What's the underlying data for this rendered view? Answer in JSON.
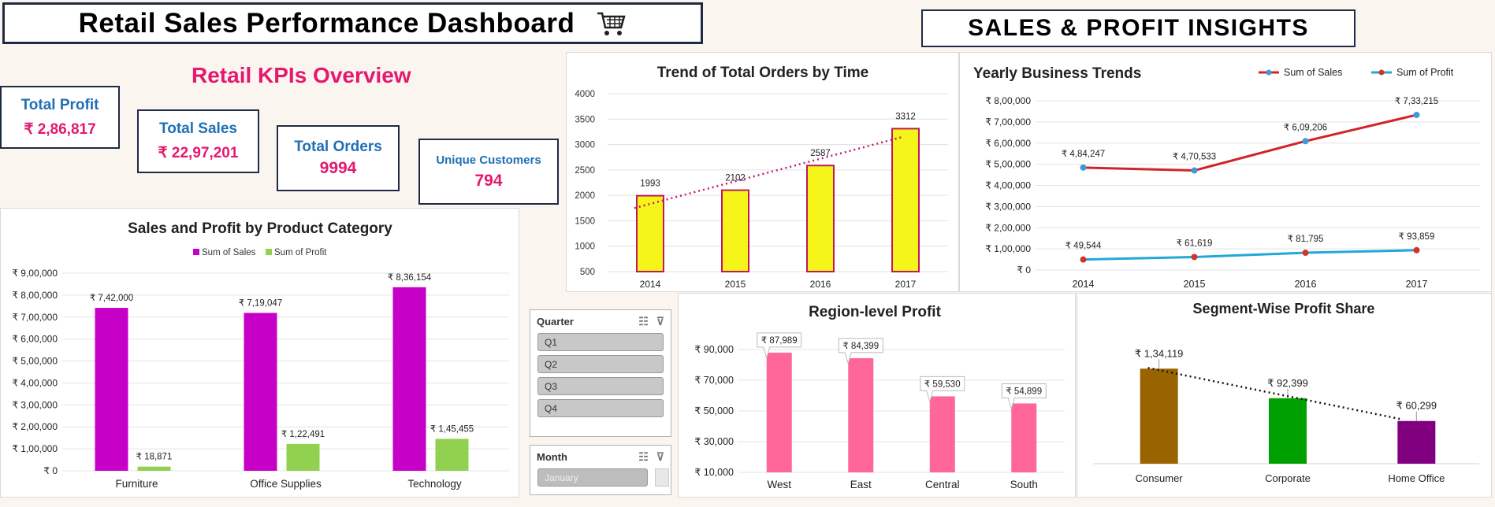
{
  "header": {
    "title": "Retail Sales Performance Dashboard",
    "right_title": "SALES & PROFIT INSIGHTS",
    "cart_icon": "shopping-cart-icon"
  },
  "kpis": {
    "heading": "Retail KPIs Overview",
    "total_profit": {
      "label": "Total Profit",
      "value": "₹ 2,86,817"
    },
    "total_sales": {
      "label": "Total Sales",
      "value": "₹ 22,97,201"
    },
    "total_orders": {
      "label": "Total Orders",
      "value": "9994"
    },
    "unique_customers": {
      "label": "Unique Customers",
      "value": "794"
    }
  },
  "colors": {
    "accent_pink": "#e4186f",
    "accent_blue": "#1f6fb5",
    "sales_purple": "#c700c7",
    "profit_green": "#92d050"
  },
  "slicers": {
    "quarter": {
      "title": "Quarter",
      "items": [
        "Q1",
        "Q2",
        "Q3",
        "Q4"
      ]
    },
    "month": {
      "title": "Month",
      "items": [
        "January"
      ]
    }
  },
  "chart_data": [
    {
      "id": "orders",
      "type": "bar",
      "title": "Trend of Total Orders by Time",
      "categories": [
        "2014",
        "2015",
        "2016",
        "2017"
      ],
      "values": [
        1993,
        2102,
        2587,
        3312
      ],
      "labels": [
        "1993",
        "2102",
        "2587",
        "3312"
      ],
      "yticks": [
        "500",
        "1000",
        "1500",
        "2000",
        "2500",
        "3000",
        "3500",
        "4000"
      ],
      "ylim": [
        500,
        4000
      ],
      "trendline": "linear dotted",
      "bar_color": "#f5f51a",
      "bar_border": "#c0185a",
      "trend_color": "#c0187a"
    },
    {
      "id": "yearly",
      "type": "line",
      "title": "Yearly Business Trends",
      "categories": [
        "2014",
        "2015",
        "2016",
        "2017"
      ],
      "yticks": [
        "₹ 0",
        "₹ 1,00,000",
        "₹ 2,00,000",
        "₹ 3,00,000",
        "₹ 4,00,000",
        "₹ 5,00,000",
        "₹ 6,00,000",
        "₹ 7,00,000",
        "₹ 8,00,000"
      ],
      "ylim": [
        0,
        800000
      ],
      "legend_position": "top-right",
      "series": [
        {
          "name": "Sum of Sales",
          "values": [
            484247,
            470533,
            609206,
            733215
          ],
          "labels": [
            "₹ 4,84,247",
            "₹ 4,70,533",
            "₹ 6,09,206",
            "₹ 7,33,215"
          ],
          "color": "#d0242a",
          "marker": "#3d9ad8"
        },
        {
          "name": "Sum of Profit",
          "values": [
            49544,
            61619,
            81795,
            93859
          ],
          "labels": [
            "₹ 49,544",
            "₹ 61,619",
            "₹ 81,795",
            "₹ 93,859"
          ],
          "color": "#20a8d8",
          "marker": "#d0342a"
        }
      ]
    },
    {
      "id": "category",
      "type": "bar",
      "title": "Sales and Profit by Product Category",
      "categories": [
        "Furniture",
        "Office Supplies",
        "Technology"
      ],
      "yticks": [
        "₹ 0",
        "₹ 1,00,000",
        "₹ 2,00,000",
        "₹ 3,00,000",
        "₹ 4,00,000",
        "₹ 5,00,000",
        "₹ 6,00,000",
        "₹ 7,00,000",
        "₹ 8,00,000",
        "₹ 9,00,000"
      ],
      "ylim": [
        0,
        900000
      ],
      "legend_position": "top",
      "series": [
        {
          "name": "Sum of Sales",
          "values": [
            742000,
            719047,
            836154
          ],
          "labels": [
            "₹ 7,42,000",
            "₹ 7,19,047",
            "₹ 8,36,154"
          ],
          "color": "#c700c7"
        },
        {
          "name": "Sum of Profit",
          "values": [
            18871,
            122491,
            145455
          ],
          "labels": [
            "₹ 18,871",
            "₹ 1,22,491",
            "₹ 1,45,455"
          ],
          "color": "#92d050"
        }
      ]
    },
    {
      "id": "region",
      "type": "bar",
      "title": "Region-level Profit",
      "categories": [
        "West",
        "East",
        "Central",
        "South"
      ],
      "values": [
        87989,
        84399,
        59530,
        54899
      ],
      "labels": [
        "₹ 87,989",
        "₹ 84,399",
        "₹ 59,530",
        "₹ 54,899"
      ],
      "yticks": [
        "₹ 10,000",
        "₹ 30,000",
        "₹ 50,000",
        "₹ 70,000",
        "₹ 90,000"
      ],
      "ylim": [
        10000,
        90000
      ],
      "bar_color": "#ff6699"
    },
    {
      "id": "segment",
      "type": "bar",
      "title": "Segment-Wise Profit Share",
      "categories": [
        "Consumer",
        "Corporate",
        "Home Office"
      ],
      "values": [
        134119,
        92399,
        60299
      ],
      "labels": [
        "₹ 1,34,119",
        "₹ 92,399",
        "₹ 60,299"
      ],
      "ylim": [
        0,
        160000
      ],
      "bar_colors": [
        "#996300",
        "#00a000",
        "#800080"
      ],
      "trendline": "linear dotted"
    }
  ]
}
